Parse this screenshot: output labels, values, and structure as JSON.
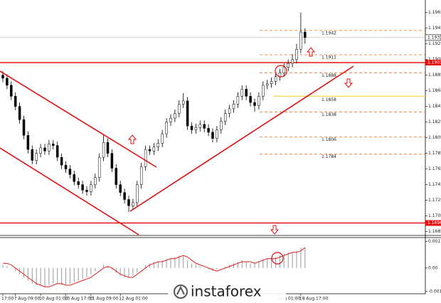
{
  "chart_data": [
    {
      "type": "candlestick",
      "categories": [
        "17:00",
        null,
        null,
        "7 Aug 09:00",
        null,
        null,
        null,
        null,
        null,
        "10 Aug 01:00",
        null,
        null,
        null,
        null,
        null,
        "10 Aug 17:00",
        null,
        null,
        null,
        null,
        null,
        "11 Aug 09:00",
        null,
        null,
        null,
        null,
        null,
        null,
        "12 Aug 01:00",
        null,
        null,
        null,
        null,
        null,
        null,
        null,
        null,
        null,
        null,
        null,
        null,
        null,
        null,
        null,
        null,
        null,
        null,
        null,
        null,
        null,
        null,
        null,
        null,
        null,
        null,
        null,
        null,
        null,
        null,
        null,
        null,
        null,
        null,
        null,
        null,
        null,
        "Aug 01:00",
        null,
        null,
        null,
        null,
        "18 Aug 17:00",
        null
      ],
      "open": [
        1.1885,
        1.1881,
        1.1872,
        1.1858,
        1.1845,
        1.1828,
        1.1808,
        1.179,
        1.1776,
        1.1785,
        1.1792,
        1.1788,
        1.1797,
        1.1795,
        1.178,
        1.177,
        1.1765,
        1.1758,
        1.1749,
        1.1745,
        1.1738,
        1.1736,
        1.1745,
        1.1754,
        1.178,
        1.1799,
        1.1785,
        1.1766,
        1.1745,
        1.1735,
        1.1726,
        1.1718,
        1.1722,
        1.1745,
        1.1768,
        1.179,
        1.1788,
        1.1793,
        1.1798,
        1.181,
        1.1825,
        1.183,
        1.1836,
        1.1848,
        1.1852,
        1.182,
        1.1815,
        1.1818,
        1.1822,
        1.1817,
        1.1812,
        1.1804,
        1.1815,
        1.1826,
        1.1836,
        1.1842,
        1.1848,
        1.1858,
        1.1867,
        1.1858,
        1.185,
        1.1846,
        1.1858,
        1.1872,
        1.1874,
        1.1877,
        1.1883,
        1.1888,
        1.1895,
        1.19,
        1.1905,
        1.1918,
        1.194
      ],
      "high": [
        1.189,
        1.1886,
        1.1877,
        1.1863,
        1.185,
        1.1833,
        1.1813,
        1.1795,
        1.179,
        1.1797,
        1.1797,
        1.1802,
        1.1802,
        1.18,
        1.1785,
        1.1775,
        1.177,
        1.1763,
        1.1754,
        1.175,
        1.1743,
        1.175,
        1.1759,
        1.1785,
        1.1808,
        1.1804,
        1.179,
        1.1771,
        1.175,
        1.174,
        1.1731,
        1.1727,
        1.175,
        1.1773,
        1.1795,
        1.1795,
        1.1798,
        1.1803,
        1.1815,
        1.183,
        1.1835,
        1.1841,
        1.1853,
        1.1862,
        1.1857,
        1.1825,
        1.1823,
        1.1827,
        1.1827,
        1.1822,
        1.1817,
        1.182,
        1.1831,
        1.1841,
        1.1847,
        1.1853,
        1.1863,
        1.1872,
        1.1872,
        1.1863,
        1.1855,
        1.1863,
        1.1877,
        1.1879,
        1.1882,
        1.1888,
        1.1893,
        1.19,
        1.1905,
        1.1912,
        1.1925,
        1.1965,
        1.1945
      ],
      "low": [
        1.1876,
        1.1867,
        1.1853,
        1.184,
        1.1823,
        1.1803,
        1.1785,
        1.1771,
        1.1771,
        1.178,
        1.1783,
        1.1783,
        1.179,
        1.1775,
        1.1765,
        1.176,
        1.1753,
        1.1744,
        1.174,
        1.1733,
        1.1731,
        1.1731,
        1.174,
        1.1749,
        1.1775,
        1.178,
        1.1761,
        1.174,
        1.173,
        1.1721,
        1.171,
        1.1713,
        1.1717,
        1.174,
        1.1763,
        1.1783,
        1.1783,
        1.1788,
        1.1793,
        1.1805,
        1.182,
        1.1825,
        1.1831,
        1.1843,
        1.1815,
        1.181,
        1.181,
        1.1813,
        1.1812,
        1.1807,
        1.1799,
        1.1799,
        1.181,
        1.1821,
        1.1831,
        1.1837,
        1.1843,
        1.1853,
        1.1853,
        1.1845,
        1.1838,
        1.1841,
        1.1853,
        1.1867,
        1.1869,
        1.1872,
        1.1878,
        1.1883,
        1.189,
        1.1895,
        1.19,
        1.1913,
        1.1925
      ],
      "close": [
        1.1881,
        1.1872,
        1.1858,
        1.1845,
        1.1828,
        1.1808,
        1.179,
        1.1776,
        1.1785,
        1.1792,
        1.1788,
        1.1797,
        1.1795,
        1.178,
        1.177,
        1.1765,
        1.1758,
        1.1749,
        1.1745,
        1.1738,
        1.1736,
        1.1745,
        1.1754,
        1.178,
        1.1799,
        1.1785,
        1.1766,
        1.1745,
        1.1735,
        1.1726,
        1.1718,
        1.1722,
        1.1745,
        1.1768,
        1.179,
        1.1788,
        1.1793,
        1.1798,
        1.181,
        1.1825,
        1.183,
        1.1836,
        1.1848,
        1.1852,
        1.182,
        1.1815,
        1.1818,
        1.1822,
        1.1817,
        1.1812,
        1.1804,
        1.1815,
        1.1826,
        1.1836,
        1.1842,
        1.1848,
        1.1858,
        1.1867,
        1.1858,
        1.185,
        1.1846,
        1.1858,
        1.1872,
        1.1874,
        1.1877,
        1.1883,
        1.1888,
        1.1895,
        1.19,
        1.1905,
        1.1918,
        1.194,
        1.1933
      ],
      "up_color": "#ffffff",
      "down_color": "#000000",
      "ylim": [
        1.1681,
        1.1981
      ],
      "yticks": [
        1.1965,
        1.1945,
        1.1925,
        1.1905,
        1.1885,
        1.1865,
        1.1845,
        1.1825,
        1.1805,
        1.1785,
        1.1765,
        1.1745,
        1.1725,
        1.1705,
        1.1685
      ],
      "hlines": [
        1.1901,
        1.1696
      ],
      "hline_color": "#e01010",
      "current": 1.1933,
      "levels": [
        1.1942,
        1.1911,
        1.1888,
        1.1838,
        1.1806,
        1.1784
      ],
      "level_color": "#e8702a",
      "pivot": 1.1858,
      "pivot_color": "#f0d020"
    },
    {
      "type": "histogram",
      "series": [
        {
          "color": "#9a9a9a",
          "values": [
            0.0002,
            0.0001,
            0,
            -0.0002,
            -0.0004,
            -0.0006,
            -0.0008,
            -0.001,
            -0.0011,
            -0.0011,
            -0.0012,
            -0.0011,
            -0.001,
            -0.001,
            -0.0011,
            -0.0011,
            -0.001,
            -0.0009,
            -0.0008,
            -0.0007,
            -0.0006,
            -0.0004,
            -0.0002,
            0,
            0.0002,
            0.0001,
            -0.0001,
            -0.0003,
            -0.0005,
            -0.0006,
            -0.0006,
            -0.0005,
            -0.0003,
            0,
            0.0002,
            0.0003,
            0.0004,
            0.0004,
            0.0005,
            0.0006,
            0.0006,
            0.0007,
            0.0008,
            0.0008,
            0.0005,
            0.0003,
            0.0002,
            0.0001,
            0,
            -0.0001,
            -0.0002,
            -0.0001,
            0,
            0.0001,
            0.0002,
            0.0003,
            0.0004,
            0.0005,
            0.0004,
            0.0003,
            0.0003,
            0.0004,
            0.0006,
            0.0006,
            0.0006,
            0.0007,
            0.0008,
            0.0009,
            0.001,
            0.001,
            0.0011,
            0.0013,
            0.0013
          ]
        },
        {
          "color": "#e02020",
          "values": [
            0.0003,
            0.0003,
            0.0002,
            0,
            -0.0002,
            -0.0004,
            -0.0006,
            -0.0008,
            -0.001,
            -0.0011,
            -0.0012,
            -0.0012,
            -0.0011,
            -0.001,
            -0.001,
            -0.0011,
            -0.0011,
            -0.001,
            -0.0009,
            -0.0008,
            -0.0007,
            -0.0006,
            -0.0004,
            -0.0002,
            0,
            0.0001,
            0,
            -0.0002,
            -0.0004,
            -0.0005,
            -0.0006,
            -0.0006,
            -0.0004,
            -0.0002,
            0,
            0.0002,
            0.0003,
            0.0004,
            0.0004,
            0.0005,
            0.0006,
            0.0006,
            0.0007,
            0.0008,
            0.0007,
            0.0005,
            0.0003,
            0.0002,
            0.0001,
            0,
            -0.0001,
            -0.0002,
            -0.0001,
            0,
            0.0001,
            0.0002,
            0.0003,
            0.0004,
            0.0004,
            0.0004,
            0.0003,
            0.0004,
            0.0005,
            0.0006,
            0.0006,
            0.0006,
            0.0007,
            0.0008,
            0.0009,
            0.001,
            0.001,
            0.0011,
            0.0013
          ]
        }
      ],
      "ylim": [
        -0.0016,
        0.0019
      ],
      "yticks": [
        0.0017,
        {
          "value": 0,
          "label": "0.00"
        },
        -0.0015
      ]
    }
  ],
  "watermark": "instaforex"
}
